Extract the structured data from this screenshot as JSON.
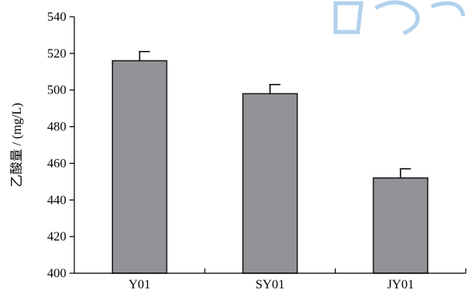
{
  "chart_data": {
    "type": "bar",
    "categories": [
      "Y01",
      "SY01",
      "JY01"
    ],
    "values": [
      516,
      498,
      452
    ],
    "error": [
      5,
      5,
      5
    ],
    "ylabel": "乙酸量 / (mg/L)",
    "xlabel": "",
    "ylim": [
      400,
      540
    ],
    "yticks": [
      400,
      420,
      440,
      460,
      480,
      500,
      520,
      540
    ],
    "colors": {
      "bar": "#939397",
      "bar_edge": "#1a1a1a",
      "watermark": "#9ec6e8"
    }
  }
}
